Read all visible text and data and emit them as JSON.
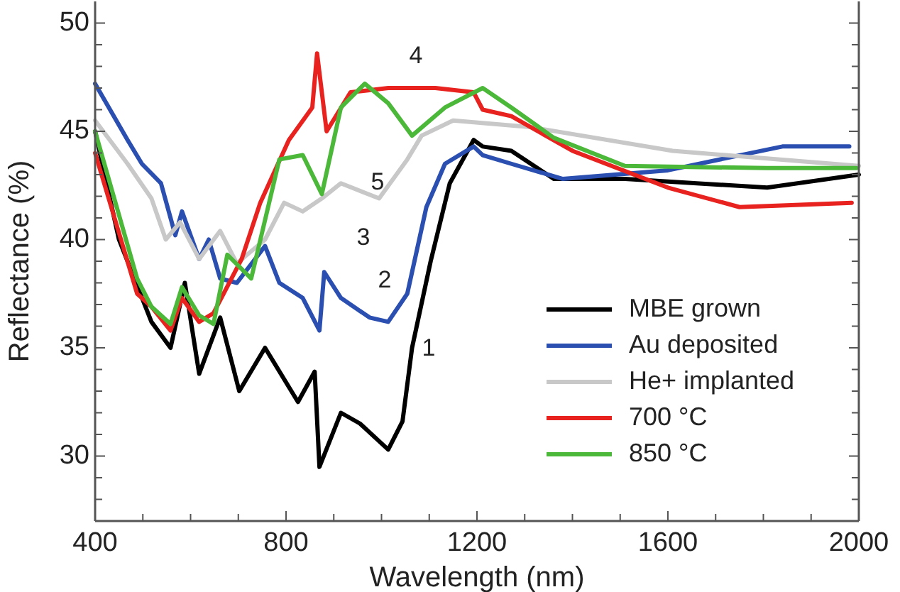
{
  "chart_data": {
    "type": "line",
    "xlabel": "Wavelength (nm)",
    "ylabel": "Reflectance (%)",
    "xlim": [
      400,
      2000
    ],
    "ylim": [
      27,
      51
    ],
    "xticks": [
      400,
      {
        "value": 500,
        "label": null
      },
      {
        "value": 600,
        "label": null
      },
      {
        "value": 700,
        "label": null
      },
      800,
      {
        "value": 900,
        "label": null
      },
      {
        "value": 1000,
        "label": null
      },
      {
        "value": 1100,
        "label": null
      },
      1200,
      {
        "value": 1300,
        "label": null
      },
      {
        "value": 1400,
        "label": null
      },
      {
        "value": 1500,
        "label": null
      },
      1600,
      {
        "value": 1700,
        "label": null
      },
      {
        "value": 1800,
        "label": null
      },
      {
        "value": 1900,
        "label": null
      },
      2000
    ],
    "yticks": [
      {
        "value": 28,
        "label": null
      },
      {
        "value": 29,
        "label": null
      },
      30,
      {
        "value": 31,
        "label": null
      },
      {
        "value": 32,
        "label": null
      },
      {
        "value": 33,
        "label": null
      },
      {
        "value": 34,
        "label": null
      },
      35,
      {
        "value": 36,
        "label": null
      },
      {
        "value": 37,
        "label": null
      },
      {
        "value": 38,
        "label": null
      },
      {
        "value": 39,
        "label": null
      },
      40,
      {
        "value": 41,
        "label": null
      },
      {
        "value": 42,
        "label": null
      },
      {
        "value": 43,
        "label": null
      },
      {
        "value": 44,
        "label": null
      },
      45,
      {
        "value": 46,
        "label": null
      },
      {
        "value": 47,
        "label": null
      },
      {
        "value": 48,
        "label": null
      },
      {
        "value": 49,
        "label": null
      },
      50
    ],
    "grid": false,
    "legend": "bottom right",
    "marker": "none",
    "line_style": "solid",
    "series": [
      {
        "name": "MBE grown",
        "color": "#000000",
        "x": [
          400,
          450,
          518,
          558,
          588,
          618,
          662,
          702,
          756,
          825,
          860,
          870,
          915,
          955,
          1014,
          1044,
          1064,
          1103,
          1143,
          1193,
          1212,
          1272,
          1361,
          1510,
          1808,
          2000
        ],
        "values": [
          45,
          40,
          36.2,
          35,
          38,
          33.8,
          36.4,
          33,
          35,
          32.5,
          33.9,
          29.5,
          32,
          31.5,
          30.3,
          31.6,
          35,
          39,
          42.6,
          44.6,
          44.3,
          44.1,
          42.8,
          42.8,
          42.4,
          43
        ]
      },
      {
        "name": "Au deposited",
        "color": "#2a4fb0",
        "x": [
          400,
          468,
          498,
          538,
          568,
          582,
          618,
          638,
          662,
          697,
          756,
          786,
          835,
          870,
          880,
          915,
          975,
          1014,
          1054,
          1094,
          1133,
          1193,
          1212,
          1272,
          1380,
          1600,
          1840,
          1980
        ],
        "values": [
          47.2,
          44.6,
          43.5,
          42.6,
          40.2,
          41.3,
          39.1,
          40,
          38.2,
          38,
          39.7,
          38,
          37.3,
          35.8,
          38.5,
          37.3,
          36.4,
          36.2,
          37.5,
          41.5,
          43.5,
          44.3,
          43.9,
          43.5,
          42.8,
          43.2,
          44.3,
          44.3
        ]
      },
      {
        "name": "He+ implanted",
        "color": "#c8c8c8",
        "x": [
          400,
          468,
          518,
          548,
          578,
          618,
          662,
          697,
          756,
          796,
          835,
          875,
          915,
          995,
          1054,
          1084,
          1150,
          1311,
          1610,
          2000
        ],
        "values": [
          45.5,
          43.5,
          41.9,
          40,
          40.8,
          39.1,
          40.4,
          38.9,
          40,
          41.7,
          41.3,
          41.9,
          42.6,
          41.9,
          43.7,
          44.8,
          45.5,
          45.2,
          44.1,
          43.4
        ]
      },
      {
        "name": "700 °C",
        "color": "#e8231f",
        "x": [
          400,
          488,
          518,
          558,
          582,
          618,
          648,
          707,
          746,
          806,
          855,
          865,
          885,
          935,
          1014,
          1113,
          1193,
          1212,
          1272,
          1400,
          1600,
          1750,
          1985
        ],
        "values": [
          44,
          37.5,
          36.9,
          35.8,
          37.3,
          36.2,
          36.6,
          39.1,
          41.7,
          44.6,
          46.1,
          48.6,
          45,
          46.8,
          47,
          47,
          46.8,
          46,
          45.7,
          44.1,
          42.4,
          41.5,
          41.7
        ]
      },
      {
        "name": "850 °C",
        "color": "#4cb83a",
        "x": [
          400,
          488,
          518,
          558,
          582,
          618,
          648,
          677,
          727,
          786,
          835,
          875,
          915,
          965,
          1014,
          1064,
          1133,
          1212,
          1272,
          1361,
          1510,
          1808,
          1995
        ],
        "values": [
          45,
          38.2,
          36.9,
          36.1,
          37.8,
          36.5,
          36.1,
          39.3,
          38.2,
          43.7,
          43.9,
          42.1,
          46.1,
          47.2,
          46.3,
          44.8,
          46.1,
          47,
          46.1,
          44.7,
          43.4,
          43.3,
          43.3
        ]
      }
    ],
    "annotations": [
      "1",
      "2",
      "3",
      "4",
      "5"
    ]
  }
}
